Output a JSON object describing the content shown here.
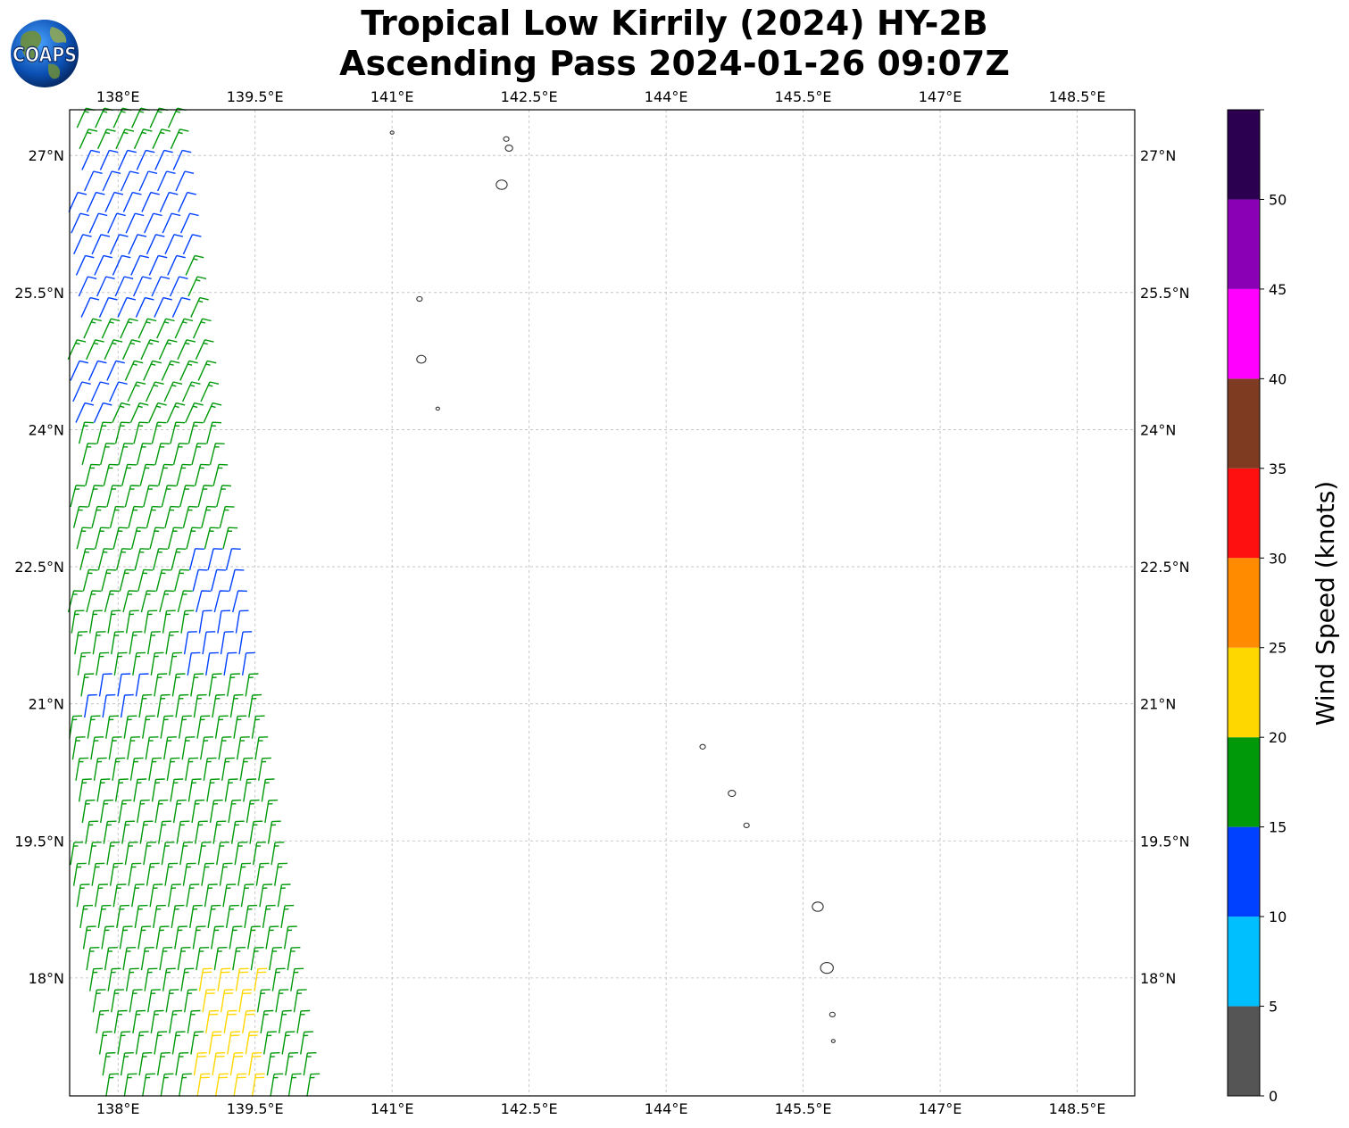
{
  "title": {
    "line1": "Tropical Low Kirrily (2024) HY-2B",
    "line2": "Ascending Pass 2024-01-26 09:07Z"
  },
  "logo": {
    "text": "COAPS",
    "icon": "globe-logo-icon"
  },
  "map": {
    "lon_range": [
      137.47,
      149.13
    ],
    "lat_range": [
      16.71,
      27.5
    ],
    "lon_ticks": [
      "138°E",
      "139.5°E",
      "141°E",
      "142.5°E",
      "144°E",
      "145.5°E",
      "147°E",
      "148.5°E"
    ],
    "lon_tick_values": [
      138,
      139.5,
      141,
      142.5,
      144,
      145.5,
      147,
      148.5
    ],
    "lat_ticks": [
      "18°N",
      "19.5°N",
      "21°N",
      "22.5°N",
      "24°N",
      "25.5°N",
      "27°N"
    ],
    "lat_tick_values": [
      18,
      19.5,
      21,
      22.5,
      24,
      25.5,
      27
    ],
    "gridlines": true,
    "coastline_color": "#333333",
    "islands": [
      {
        "lon": 141.0,
        "lat": 27.25,
        "r": 0.02
      },
      {
        "lon": 142.25,
        "lat": 27.18,
        "r": 0.03
      },
      {
        "lon": 142.28,
        "lat": 27.08,
        "r": 0.04
      },
      {
        "lon": 142.2,
        "lat": 26.68,
        "r": 0.06
      },
      {
        "lon": 141.3,
        "lat": 25.43,
        "r": 0.03
      },
      {
        "lon": 141.32,
        "lat": 24.77,
        "r": 0.05
      },
      {
        "lon": 141.5,
        "lat": 24.23,
        "r": 0.02
      },
      {
        "lon": 144.4,
        "lat": 20.53,
        "r": 0.03
      },
      {
        "lon": 144.72,
        "lat": 20.02,
        "r": 0.04
      },
      {
        "lon": 144.88,
        "lat": 19.67,
        "r": 0.03
      },
      {
        "lon": 145.66,
        "lat": 18.78,
        "r": 0.06
      },
      {
        "lon": 145.76,
        "lat": 18.11,
        "r": 0.07
      },
      {
        "lon": 145.82,
        "lat": 17.6,
        "r": 0.03
      },
      {
        "lon": 145.83,
        "lat": 17.31,
        "r": 0.02
      }
    ]
  },
  "wind": {
    "swath": {
      "top_lat": 27.5,
      "top_west_lon": 137.47,
      "top_east_lon": 138.62,
      "mid_lat": 24.3,
      "mid_east_lon": 139.0,
      "bottom_lat": 16.8,
      "bottom_west_lon": 137.5,
      "bottom_east_lon": 140.15,
      "rows": 47,
      "cols_max": 12,
      "spacing_deg": 0.2
    },
    "direction_regimes": [
      {
        "lat_min": 24.0,
        "lat_max": 28.0,
        "direction": "northeast"
      },
      {
        "lat_min": 22.0,
        "lat_max": 24.0,
        "direction": "north-northeast"
      },
      {
        "lat_min": 16.0,
        "lat_max": 22.0,
        "direction": "north"
      }
    ],
    "speed_zones": [
      {
        "label": "blue-patch-north",
        "lat_min": 25.3,
        "lat_max": 27.0,
        "lon_min": 137.47,
        "lon_max": 138.8,
        "speed_kt": 12
      },
      {
        "label": "blue-patch-24n",
        "lat_min": 24.0,
        "lat_max": 24.7,
        "lon_min": 137.47,
        "lon_max": 138.0,
        "speed_kt": 12
      },
      {
        "label": "blue-patch-22n",
        "lat_min": 21.2,
        "lat_max": 22.8,
        "lon_min": 138.8,
        "lon_max": 139.5,
        "speed_kt": 13
      },
      {
        "label": "blue-patch-21n",
        "lat_min": 20.9,
        "lat_max": 21.3,
        "lon_min": 137.7,
        "lon_max": 138.3,
        "speed_kt": 13
      },
      {
        "label": "yellow-patch",
        "lat_min": 16.8,
        "lat_max": 18.0,
        "lon_min": 138.9,
        "lon_max": 139.6,
        "speed_kt": 22
      }
    ],
    "default_speed_kt": 17
  },
  "colorbar": {
    "title": "Wind Speed (knots)",
    "bounds": [
      0,
      5,
      10,
      15,
      20,
      25,
      30,
      35,
      40,
      45,
      50,
      55
    ],
    "tick_labels": [
      "0",
      "5",
      "10",
      "15",
      "20",
      "25",
      "30",
      "35",
      "40",
      "45",
      "50"
    ],
    "colors": [
      "#555555",
      "#00bfff",
      "#0040ff",
      "#00990a",
      "#ffd700",
      "#ff8c00",
      "#ff1010",
      "#7f3b22",
      "#ff00ff",
      "#8a00b5",
      "#2b0050"
    ]
  }
}
